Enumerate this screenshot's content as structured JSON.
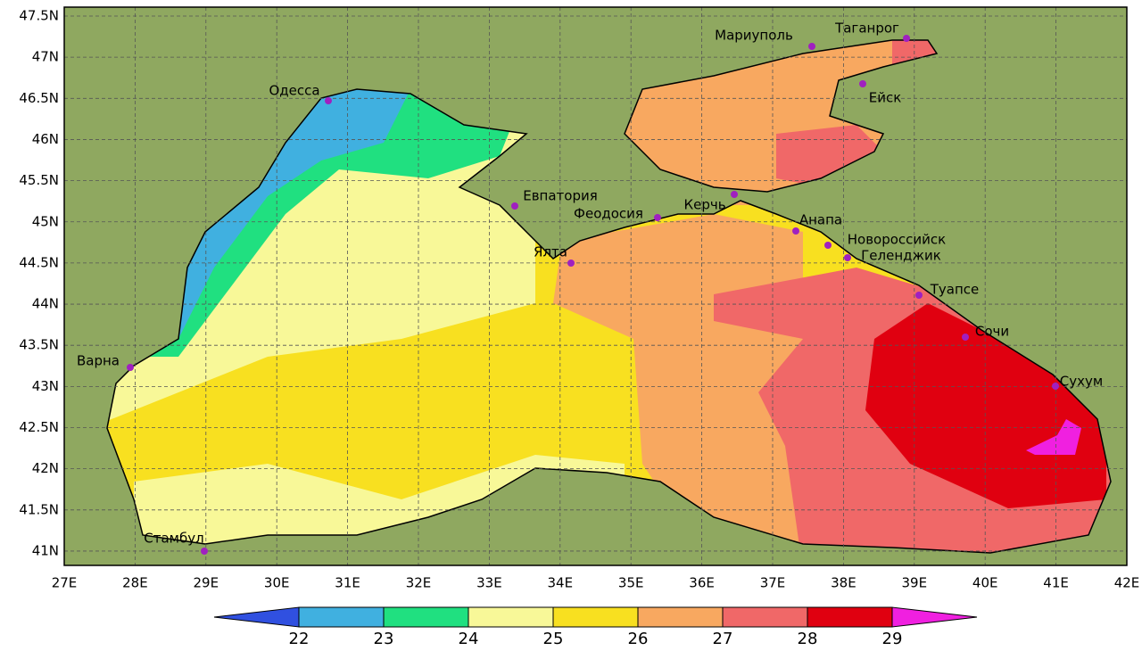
{
  "map": {
    "lat_ticks": [
      {
        "value": 47.5,
        "label": "47.5N"
      },
      {
        "value": 47,
        "label": "47N"
      },
      {
        "value": 46.5,
        "label": "46.5N"
      },
      {
        "value": 46,
        "label": "46N"
      },
      {
        "value": 45.5,
        "label": "45.5N"
      },
      {
        "value": 45,
        "label": "45N"
      },
      {
        "value": 44.5,
        "label": "44.5N"
      },
      {
        "value": 44,
        "label": "44N"
      },
      {
        "value": 43.5,
        "label": "43.5N"
      },
      {
        "value": 43,
        "label": "43N"
      },
      {
        "value": 42.5,
        "label": "42.5N"
      },
      {
        "value": 42,
        "label": "42N"
      },
      {
        "value": 41.5,
        "label": "41.5N"
      },
      {
        "value": 41,
        "label": "41N"
      }
    ],
    "lon_ticks": [
      {
        "value": 27,
        "label": "27E"
      },
      {
        "value": 28,
        "label": "28E"
      },
      {
        "value": 29,
        "label": "29E"
      },
      {
        "value": 30,
        "label": "30E"
      },
      {
        "value": 31,
        "label": "31E"
      },
      {
        "value": 32,
        "label": "32E"
      },
      {
        "value": 33,
        "label": "33E"
      },
      {
        "value": 34,
        "label": "34E"
      },
      {
        "value": 35,
        "label": "35E"
      },
      {
        "value": 36,
        "label": "36E"
      },
      {
        "value": 37,
        "label": "37E"
      },
      {
        "value": 38,
        "label": "38E"
      },
      {
        "value": 39,
        "label": "39E"
      },
      {
        "value": 40,
        "label": "40E"
      },
      {
        "value": 41,
        "label": "41E"
      },
      {
        "value": 42,
        "label": "42E"
      }
    ],
    "cities": [
      {
        "label": "Одесса"
      },
      {
        "label": "Мариуполь"
      },
      {
        "label": "Таганрог"
      },
      {
        "label": "Ейск"
      },
      {
        "label": "Евпатория"
      },
      {
        "label": "Феодосия"
      },
      {
        "label": "Керчь"
      },
      {
        "label": "Анапа"
      },
      {
        "label": "Новороссийск"
      },
      {
        "label": "Геленджик"
      },
      {
        "label": "Ялта"
      },
      {
        "label": "Туапсе"
      },
      {
        "label": "Сочи"
      },
      {
        "label": "Сухум"
      },
      {
        "label": "Варна"
      },
      {
        "label": "Стамбул"
      }
    ],
    "colorbar": {
      "levels": [
        22,
        23,
        24,
        25,
        26,
        27,
        28,
        29
      ],
      "colors": [
        "#3050e0",
        "#40b0e0",
        "#20e080",
        "#f8f898",
        "#f8e020",
        "#f8a860",
        "#f06868",
        "#e00010",
        "#f020e0"
      ]
    }
  }
}
